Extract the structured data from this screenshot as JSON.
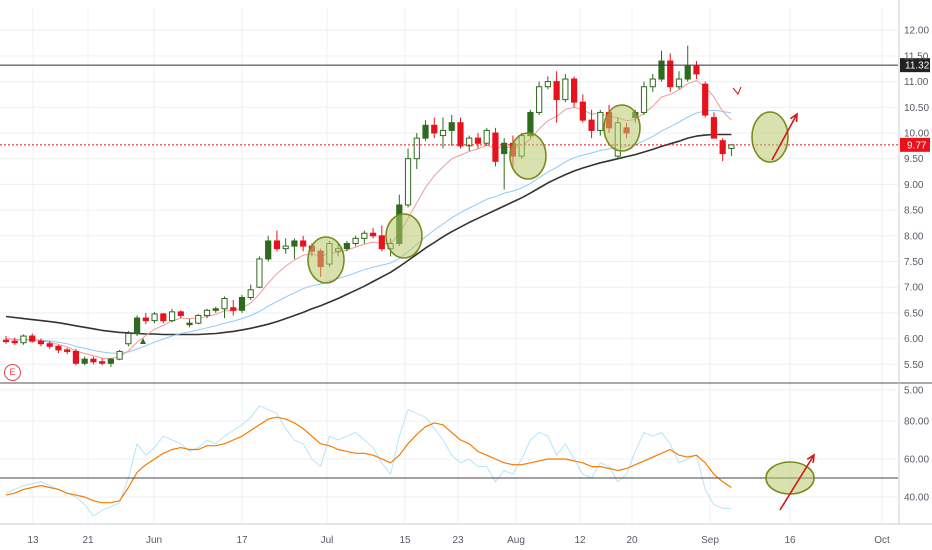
{
  "chart_data": {
    "type": "candlestick",
    "price_panel": {
      "y_ticks": [
        5.0,
        5.5,
        6.0,
        6.5,
        7.0,
        7.5,
        8.0,
        8.5,
        9.0,
        9.5,
        10.0,
        10.5,
        11.0,
        11.5,
        12.0
      ],
      "y_tick_labels": [
        "5.00",
        "5.50",
        "6.00",
        "6.50",
        "7.00",
        "7.50",
        "8.00",
        "8.50",
        "9.00",
        "9.50",
        "10.00",
        "10.50",
        "11.00",
        "11.50",
        "12.00"
      ],
      "ylim": [
        4.93,
        12.15
      ],
      "resistance_level": 11.32,
      "resistance_label": "11.32",
      "last_price": 9.77,
      "last_price_label": "9.77",
      "colors": {
        "up": "#2e6b1c",
        "down": "#e8121c",
        "ma_fast": "#ef9a9a",
        "ma_mid": "#90caf9",
        "ma_slow": "#333333",
        "price_line": "#e8121c"
      },
      "candles": [
        [
          5.97,
          6.05,
          5.9,
          5.95
        ],
        [
          5.95,
          6.02,
          5.88,
          5.92
        ],
        [
          5.92,
          6.08,
          5.88,
          6.05
        ],
        [
          6.05,
          6.1,
          5.92,
          5.95
        ],
        [
          5.95,
          6.0,
          5.85,
          5.9
        ],
        [
          5.9,
          5.95,
          5.8,
          5.85
        ],
        [
          5.85,
          5.88,
          5.72,
          5.78
        ],
        [
          5.78,
          5.82,
          5.7,
          5.75
        ],
        [
          5.75,
          5.8,
          5.48,
          5.52
        ],
        [
          5.52,
          5.65,
          5.48,
          5.6
        ],
        [
          5.6,
          5.65,
          5.5,
          5.55
        ],
        [
          5.55,
          5.62,
          5.48,
          5.52
        ],
        [
          5.52,
          5.62,
          5.45,
          5.6
        ],
        [
          5.6,
          5.78,
          5.58,
          5.75
        ],
        [
          5.9,
          6.15,
          5.85,
          6.1
        ],
        [
          6.1,
          6.45,
          6.05,
          6.4
        ],
        [
          6.4,
          6.5,
          6.28,
          6.35
        ],
        [
          6.35,
          6.52,
          6.3,
          6.48
        ],
        [
          6.48,
          6.5,
          6.3,
          6.35
        ],
        [
          6.35,
          6.58,
          6.32,
          6.52
        ],
        [
          6.52,
          6.55,
          6.4,
          6.45
        ],
        [
          6.3,
          6.38,
          6.22,
          6.3
        ],
        [
          6.3,
          6.48,
          6.28,
          6.45
        ],
        [
          6.45,
          6.58,
          6.4,
          6.55
        ],
        [
          6.55,
          6.62,
          6.5,
          6.58
        ],
        [
          6.58,
          6.82,
          6.4,
          6.78
        ],
        [
          6.6,
          6.75,
          6.45,
          6.55
        ],
        [
          6.55,
          6.85,
          6.5,
          6.8
        ],
        [
          6.8,
          7.05,
          6.75,
          6.95
        ],
        [
          7.0,
          7.6,
          6.98,
          7.55
        ],
        [
          7.55,
          8.0,
          7.5,
          7.9
        ],
        [
          7.9,
          8.1,
          7.7,
          7.75
        ],
        [
          7.75,
          7.95,
          7.65,
          7.8
        ],
        [
          7.8,
          7.95,
          7.55,
          7.9
        ],
        [
          7.9,
          8.0,
          7.7,
          7.8
        ],
        [
          7.8,
          7.85,
          7.6,
          7.7
        ],
        [
          7.7,
          7.75,
          7.2,
          7.4
        ],
        [
          7.45,
          7.9,
          7.4,
          7.85
        ],
        [
          7.7,
          7.85,
          7.6,
          7.75
        ],
        [
          7.75,
          7.9,
          7.7,
          7.85
        ],
        [
          7.85,
          8.0,
          7.8,
          7.95
        ],
        [
          7.95,
          8.1,
          7.85,
          8.05
        ],
        [
          8.05,
          8.15,
          7.95,
          8.0
        ],
        [
          8.0,
          8.2,
          7.7,
          7.75
        ],
        [
          7.75,
          7.95,
          7.6,
          7.85
        ],
        [
          7.85,
          8.8,
          7.8,
          8.6
        ],
        [
          8.6,
          9.7,
          8.55,
          9.5
        ],
        [
          9.5,
          10.0,
          9.3,
          9.9
        ],
        [
          9.9,
          10.25,
          9.85,
          10.15
        ],
        [
          10.15,
          10.3,
          9.9,
          10.0
        ],
        [
          9.95,
          10.3,
          9.7,
          10.05
        ],
        [
          10.05,
          10.35,
          9.75,
          10.2
        ],
        [
          10.2,
          10.3,
          9.7,
          9.75
        ],
        [
          9.75,
          9.95,
          9.65,
          9.9
        ],
        [
          9.9,
          10.0,
          9.7,
          9.8
        ],
        [
          9.8,
          10.1,
          9.75,
          10.05
        ],
        [
          10.0,
          10.1,
          9.35,
          9.45
        ],
        [
          9.6,
          9.9,
          8.9,
          9.8
        ],
        [
          9.8,
          9.95,
          9.3,
          9.55
        ],
        [
          9.55,
          10.0,
          9.5,
          9.95
        ],
        [
          9.95,
          10.45,
          9.9,
          10.4
        ],
        [
          10.4,
          11.0,
          10.35,
          10.9
        ],
        [
          10.9,
          11.1,
          10.85,
          11.0
        ],
        [
          11.0,
          11.2,
          10.2,
          10.65
        ],
        [
          10.65,
          11.15,
          10.6,
          11.05
        ],
        [
          11.05,
          11.1,
          10.5,
          10.6
        ],
        [
          10.6,
          10.75,
          10.2,
          10.25
        ],
        [
          10.25,
          10.45,
          9.9,
          10.05
        ],
        [
          10.05,
          10.45,
          9.95,
          10.4
        ],
        [
          10.4,
          10.55,
          10.0,
          10.1
        ],
        [
          9.55,
          10.3,
          9.5,
          10.2
        ],
        [
          10.1,
          10.2,
          9.9,
          10.0
        ],
        [
          10.3,
          10.45,
          10.2,
          10.4
        ],
        [
          10.4,
          11.0,
          10.35,
          10.9
        ],
        [
          10.9,
          11.15,
          10.8,
          11.05
        ],
        [
          11.05,
          11.6,
          11.0,
          11.4
        ],
        [
          11.4,
          11.55,
          10.8,
          10.9
        ],
        [
          10.9,
          11.2,
          10.85,
          11.05
        ],
        [
          11.05,
          11.7,
          11.0,
          11.3
        ],
        [
          11.3,
          11.4,
          11.05,
          11.15
        ],
        [
          10.95,
          11.0,
          10.3,
          10.35
        ],
        [
          10.3,
          10.4,
          9.9,
          9.9
        ],
        [
          9.85,
          9.9,
          9.45,
          9.6
        ],
        [
          9.7,
          9.78,
          9.55,
          9.77
        ]
      ],
      "fast_ma": [
        6.0,
        5.98,
        5.97,
        5.98,
        5.96,
        5.93,
        5.89,
        5.84,
        5.76,
        5.71,
        5.67,
        5.62,
        5.61,
        5.65,
        5.76,
        5.93,
        6.06,
        6.18,
        6.26,
        6.34,
        6.4,
        6.39,
        6.4,
        6.43,
        6.47,
        6.54,
        6.54,
        6.6,
        6.69,
        6.87,
        7.08,
        7.26,
        7.41,
        7.53,
        7.62,
        7.65,
        7.6,
        7.66,
        7.68,
        7.72,
        7.78,
        7.84,
        7.88,
        7.85,
        7.85,
        8.04,
        8.34,
        8.64,
        8.94,
        9.17,
        9.34,
        9.5,
        9.57,
        9.64,
        9.69,
        9.76,
        9.7,
        9.74,
        9.7,
        9.75,
        9.88,
        10.08,
        10.24,
        10.32,
        10.46,
        10.5,
        10.45,
        10.37,
        10.38,
        10.32,
        10.3,
        10.24,
        10.26,
        10.39,
        10.52,
        10.7,
        10.75,
        10.84,
        10.96,
        11.02,
        10.9,
        10.7,
        10.42,
        10.25
      ],
      "mid_ma": [
        6.0,
        5.99,
        5.98,
        5.98,
        5.97,
        5.96,
        5.93,
        5.9,
        5.85,
        5.81,
        5.77,
        5.74,
        5.72,
        5.71,
        5.74,
        5.8,
        5.86,
        5.93,
        5.99,
        6.05,
        6.1,
        6.13,
        6.17,
        6.21,
        6.25,
        6.3,
        6.34,
        6.39,
        6.45,
        6.53,
        6.63,
        6.72,
        6.81,
        6.89,
        6.97,
        7.03,
        7.06,
        7.12,
        7.17,
        7.22,
        7.28,
        7.34,
        7.39,
        7.43,
        7.47,
        7.56,
        7.69,
        7.83,
        7.98,
        8.11,
        8.23,
        8.35,
        8.45,
        8.54,
        8.62,
        8.71,
        8.76,
        8.83,
        8.87,
        8.93,
        9.02,
        9.13,
        9.24,
        9.33,
        9.44,
        9.52,
        9.57,
        9.61,
        9.66,
        9.69,
        9.72,
        9.74,
        9.77,
        9.85,
        9.93,
        10.04,
        10.12,
        10.21,
        10.31,
        10.39,
        10.43,
        10.44,
        10.42,
        10.39
      ],
      "slow_ma": [
        6.43,
        6.41,
        6.39,
        6.37,
        6.35,
        6.33,
        6.31,
        6.28,
        6.25,
        6.22,
        6.19,
        6.16,
        6.14,
        6.12,
        6.11,
        6.1,
        6.09,
        6.09,
        6.08,
        6.08,
        6.08,
        6.08,
        6.08,
        6.09,
        6.1,
        6.12,
        6.14,
        6.17,
        6.2,
        6.24,
        6.28,
        6.33,
        6.39,
        6.45,
        6.51,
        6.58,
        6.64,
        6.71,
        6.78,
        6.86,
        6.94,
        7.02,
        7.11,
        7.2,
        7.29,
        7.4,
        7.52,
        7.64,
        7.76,
        7.87,
        7.98,
        8.08,
        8.17,
        8.26,
        8.34,
        8.42,
        8.5,
        8.58,
        8.66,
        8.74,
        8.83,
        8.93,
        9.03,
        9.11,
        9.19,
        9.26,
        9.32,
        9.37,
        9.42,
        9.46,
        9.5,
        9.54,
        9.58,
        9.63,
        9.68,
        9.74,
        9.79,
        9.84,
        9.9,
        9.94,
        9.96,
        9.97,
        9.97,
        9.97
      ]
    },
    "indicator_panel": {
      "y_ticks": [
        40.0,
        60.0,
        80.0
      ],
      "y_tick_labels": [
        "40.00",
        "60.00",
        "80.00"
      ],
      "ylim": [
        32,
        92
      ],
      "reference_level": 50,
      "colors": {
        "rsi": "#f57c00",
        "rsi_fast": "#b3e5fc"
      },
      "rsi": [
        41,
        42,
        44,
        45,
        46,
        45,
        44,
        42,
        41,
        40,
        38,
        37,
        37,
        38,
        45,
        53,
        57,
        60,
        63,
        65,
        66,
        65,
        65,
        67,
        67,
        68,
        70,
        72,
        75,
        78,
        81,
        82,
        81,
        79,
        76,
        72,
        68,
        67,
        65,
        64,
        63,
        63,
        62,
        60,
        58,
        62,
        68,
        73,
        77,
        79,
        78,
        74,
        70,
        68,
        64,
        62,
        60,
        58,
        57,
        57,
        58,
        59,
        60,
        60,
        60,
        59,
        58,
        56,
        56,
        55,
        54,
        55,
        57,
        59,
        61,
        63,
        65,
        62,
        61,
        62,
        58,
        52,
        48,
        45
      ],
      "rsi_fast": [
        42,
        44,
        46,
        47,
        48,
        46,
        44,
        42,
        40,
        36,
        30,
        33,
        35,
        37,
        50,
        68,
        62,
        66,
        72,
        70,
        68,
        64,
        66,
        70,
        68,
        72,
        75,
        78,
        82,
        88,
        86,
        84,
        76,
        70,
        68,
        60,
        56,
        72,
        70,
        72,
        74,
        70,
        66,
        58,
        52,
        72,
        86,
        84,
        82,
        76,
        70,
        62,
        58,
        60,
        56,
        56,
        48,
        54,
        52,
        60,
        70,
        74,
        72,
        62,
        68,
        60,
        52,
        50,
        58,
        56,
        48,
        52,
        64,
        74,
        72,
        74,
        68,
        58,
        60,
        62,
        44,
        36,
        34,
        34
      ]
    },
    "x_tick_labels": [
      "13",
      "21",
      "Jun",
      "17",
      "Jul",
      "15",
      "23",
      "Aug",
      "12",
      "20",
      "Sep",
      "16",
      "Oct"
    ],
    "annotations": [
      "ellipse",
      "ellipse",
      "ellipse",
      "ellipse",
      "ellipse",
      "arrow",
      "ellipse",
      "arrow"
    ]
  }
}
